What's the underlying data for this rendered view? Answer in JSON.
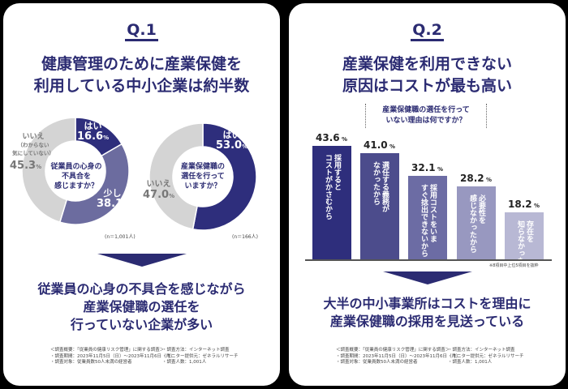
{
  "q1": {
    "label": "Q.1",
    "title": [
      "健康管理のために産業保健を",
      "利用している中小企業は約半数"
    ],
    "donut1": {
      "center": [
        "従業員の心身の",
        "不具合を",
        "感じますか？"
      ],
      "n": "(n＝1,001人)",
      "slices": [
        {
          "label": "はい",
          "value": 16.6,
          "color": "#2e2e7c"
        },
        {
          "label": "少し",
          "value": 38.1,
          "color": "#6c6c9f"
        },
        {
          "label": "いいえ",
          "sub": [
            "（わからない",
            "気にしていない）"
          ],
          "value": 45.3,
          "color": "#d4d4d4"
        }
      ]
    },
    "donut2": {
      "center": [
        "産業保健職の",
        "選任を行って",
        "いますか？"
      ],
      "n": "(n＝166人)",
      "slices": [
        {
          "label": "はい",
          "value": 53.0,
          "color": "#2e2e7c"
        },
        {
          "label": "いいえ",
          "value": 47.0,
          "color": "#d4d4d4"
        }
      ]
    },
    "conclusion": [
      "従業員の心身の不具合を感じながら",
      "産業保健職の選任を",
      "行っていない企業が多い"
    ],
    "footer": {
      "left": [
        "＜調査概要：「従業員の健康リスク管理」に関する調査＞",
        "・調査期間：2023年11月5日（日）〜2023年11月6日（月）",
        "・調査対象：従業員数50人未満の経営者"
      ],
      "right": [
        "・調査方法：インターネット調査",
        "・モニター提供元：ゼネラルリサーチ",
        "・調査人数：1,001人"
      ]
    }
  },
  "q2": {
    "label": "Q.2",
    "title": [
      "産業保健を利用できない",
      "原因はコストが最も高い"
    ],
    "question": [
      "産業保健職の選任を行って",
      "いない理由は何ですか？"
    ],
    "note": "※8項目中上位5項目を抜粋",
    "chart_data": {
      "type": "bar",
      "unit": "%",
      "categories": [
        "採用するとコストがかさむから",
        "選任する義務がなかったから",
        "採用コストをいますぐ捻出できないから",
        "必要性を感じなかったから",
        "存在を知らなかった"
      ],
      "labels": [
        [
          "採用すると",
          "コストがかさむから"
        ],
        [
          "選任する義務が",
          "なかったから"
        ],
        [
          "採用コストをいま",
          "すぐ捻出できないから"
        ],
        [
          "必要性を",
          "感じなかったから"
        ],
        [
          "存在を",
          "知らなかった"
        ]
      ],
      "values": [
        43.6,
        41.0,
        32.1,
        28.2,
        18.2
      ],
      "display": [
        "43.6",
        "41.0",
        "32.1",
        "28.2",
        "18.2"
      ],
      "colors": [
        "#2e2e7c",
        "#4c4c8c",
        "#6c6ca4",
        "#9898c0",
        "#b8b8d4"
      ]
    },
    "conclusion": [
      "大半の中小事業所はコストを理由に",
      "産業保健職の採用を見送っている"
    ],
    "footer": {
      "left": [
        "＜調査概要：「従業員の健康リスク管理」に関する調査＞",
        "・調査期間：2023年11月5日（日）〜2023年11月6日（月）",
        "・調査対象：従業員数50人未満の経営者"
      ],
      "right": [
        "・調査方法：インターネット調査",
        "・モニター提供元：ゼネラルリサーチ",
        "・調査人数：1,001人"
      ]
    }
  }
}
